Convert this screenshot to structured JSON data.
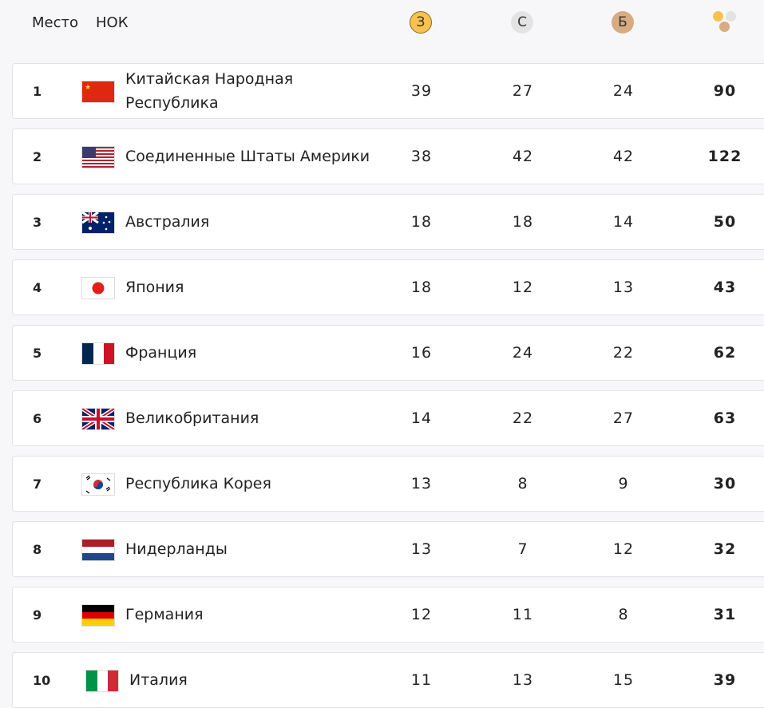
{
  "header": {
    "place": "Место",
    "noc": "НОК",
    "gold": "З",
    "silver": "С",
    "bronze": "Б"
  },
  "colors": {
    "gold": "#f7c24f",
    "silver": "#e3e3e3",
    "bronze": "#d8ab80"
  },
  "rows": [
    {
      "rank": "1",
      "country": "Китайская Народная Республика",
      "flag": "china",
      "gold": "39",
      "silver": "27",
      "bronze": "24",
      "total": "90"
    },
    {
      "rank": "2",
      "country": "Соединенные Штаты Америки",
      "flag": "usa",
      "gold": "38",
      "silver": "42",
      "bronze": "42",
      "total": "122"
    },
    {
      "rank": "3",
      "country": "Австралия",
      "flag": "australia",
      "gold": "18",
      "silver": "18",
      "bronze": "14",
      "total": "50"
    },
    {
      "rank": "4",
      "country": "Япония",
      "flag": "japan",
      "gold": "18",
      "silver": "12",
      "bronze": "13",
      "total": "43"
    },
    {
      "rank": "5",
      "country": "Франция",
      "flag": "france",
      "gold": "16",
      "silver": "24",
      "bronze": "22",
      "total": "62"
    },
    {
      "rank": "6",
      "country": "Великобритания",
      "flag": "uk",
      "gold": "14",
      "silver": "22",
      "bronze": "27",
      "total": "63"
    },
    {
      "rank": "7",
      "country": "Республика Корея",
      "flag": "korea",
      "gold": "13",
      "silver": "8",
      "bronze": "9",
      "total": "30"
    },
    {
      "rank": "8",
      "country": "Нидерланды",
      "flag": "netherlands",
      "gold": "13",
      "silver": "7",
      "bronze": "12",
      "total": "32"
    },
    {
      "rank": "9",
      "country": "Германия",
      "flag": "germany",
      "gold": "12",
      "silver": "11",
      "bronze": "8",
      "total": "31"
    },
    {
      "rank": "10",
      "country": "Италия",
      "flag": "italy",
      "gold": "11",
      "silver": "13",
      "bronze": "15",
      "total": "39"
    }
  ]
}
